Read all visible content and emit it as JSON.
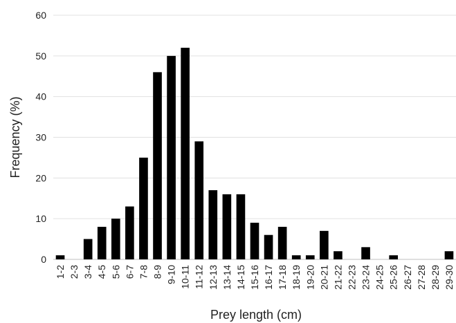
{
  "chart_data": {
    "type": "bar",
    "title": "",
    "xlabel": "Prey length (cm)",
    "ylabel": "Frequency (%)",
    "ylim": [
      0,
      60
    ],
    "yticks": [
      0,
      10,
      20,
      30,
      40,
      50,
      60
    ],
    "grid": true,
    "legend": "none",
    "bar_color": "#000000",
    "categories": [
      "1-2",
      "2-3",
      "3-4",
      "4-5",
      "5-6",
      "6-7",
      "7-8",
      "8-9",
      "9-10",
      "10-11",
      "11-12",
      "12-13",
      "13-14",
      "14-15",
      "15-16",
      "16-17",
      "17-18",
      "18-19",
      "19-20",
      "20-21",
      "21-22",
      "22-23",
      "23-24",
      "24-25",
      "25-26",
      "26-27",
      "27-28",
      "28-29",
      "29-30"
    ],
    "values": [
      1,
      0,
      5,
      8,
      10,
      13,
      25,
      46,
      50,
      52,
      29,
      17,
      16,
      16,
      9,
      6,
      8,
      1,
      1,
      7,
      2,
      0,
      3,
      0,
      1,
      0,
      0,
      0,
      2
    ]
  }
}
